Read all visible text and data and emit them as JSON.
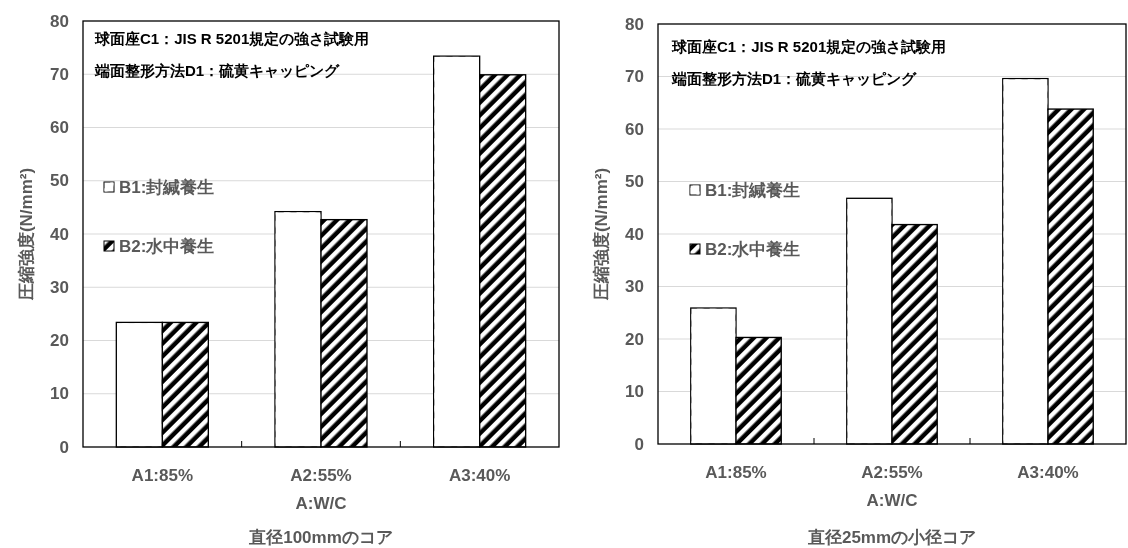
{
  "chart_data": [
    {
      "type": "bar",
      "title": "直径100mmのコア",
      "xlabel": "A:W/C",
      "ylabel": "圧縮強度(N/mm²)",
      "categories": [
        "A1:85%",
        "A2:55%",
        "A3:40%"
      ],
      "series": [
        {
          "name": "B1:封緘養生",
          "color": "#ffffff",
          "values": [
            23.4,
            44.2,
            73.4
          ]
        },
        {
          "name": "B2:水中養生",
          "color": "#000000",
          "values": [
            23.4,
            42.7,
            69.9
          ]
        }
      ],
      "ylim": [
        0,
        80
      ],
      "yticks": [
        0,
        10,
        20,
        30,
        40,
        50,
        60,
        70,
        80
      ],
      "grid": "y",
      "legend": "left",
      "annotations": [
        "球面座C1：JIS R  5201規定の強さ試験用",
        "端面整形方法D1：硫黄キャッピング"
      ]
    },
    {
      "type": "bar",
      "title": "直径25mmの小径コア",
      "xlabel": "A:W/C",
      "ylabel": "圧縮強度(N/mm²)",
      "categories": [
        "A1:85%",
        "A2:55%",
        "A3:40%"
      ],
      "series": [
        {
          "name": "B1:封緘養生",
          "color": "#ffffff",
          "values": [
            25.9,
            46.8,
            69.6
          ]
        },
        {
          "name": "B2:水中養生",
          "color": "#000000",
          "values": [
            20.3,
            41.8,
            63.8
          ]
        }
      ],
      "ylim": [
        0,
        80
      ],
      "yticks": [
        0,
        10,
        20,
        30,
        40,
        50,
        60,
        70,
        80
      ],
      "grid": "y",
      "legend": "left",
      "annotations": [
        "球面座C1：JIS R  5201規定の強さ試験用",
        "端面整形方法D1：硫黄キャッピング"
      ]
    }
  ]
}
